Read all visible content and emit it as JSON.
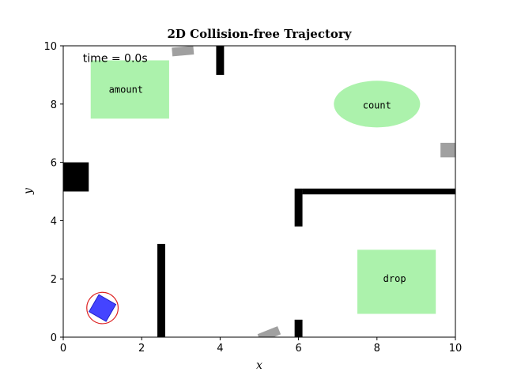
{
  "chart_data": {
    "type": "scatter",
    "title": "2D Collision-free Trajectory",
    "xlabel": "x",
    "ylabel": "y",
    "xlim": [
      0,
      10
    ],
    "ylim": [
      0,
      10
    ],
    "xticks": [
      0,
      2,
      4,
      6,
      8,
      10
    ],
    "yticks": [
      0,
      2,
      4,
      6,
      8,
      10
    ],
    "grid": false,
    "time_text": "time = 0.0s",
    "colors": {
      "obstacle": "#000000",
      "zone_fill": "#90ee90",
      "moving_obstacle": "#a0a0a0",
      "robot_fill": "#4444ff",
      "robot_outline": "#2222cc",
      "safety_circle": "#dd2222"
    },
    "zones": [
      {
        "label": "amount",
        "shape": "rect",
        "x0": 0.7,
        "x1": 2.7,
        "y0": 7.5,
        "y1": 9.5,
        "label_at": [
          1.6,
          8.5
        ]
      },
      {
        "label": "count",
        "shape": "ellipse",
        "cx": 8.0,
        "cy": 8.0,
        "rx": 1.1,
        "ry": 0.8,
        "label_at": [
          8.0,
          7.95
        ]
      },
      {
        "label": "drop",
        "shape": "rect",
        "x0": 7.5,
        "x1": 9.5,
        "y0": 0.8,
        "y1": 3.0,
        "label_at": [
          8.45,
          2.0
        ]
      }
    ],
    "static_obstacles": [
      {
        "x0": 0.0,
        "x1": 0.65,
        "y0": 5.0,
        "y1": 6.0
      },
      {
        "x0": 3.9,
        "x1": 4.1,
        "y0": 9.0,
        "y1": 10.0
      },
      {
        "x0": 5.9,
        "x1": 6.1,
        "y0": 3.8,
        "y1": 5.1
      },
      {
        "x0": 6.1,
        "x1": 10.0,
        "y0": 4.9,
        "y1": 5.1
      },
      {
        "x0": 2.4,
        "x1": 2.6,
        "y0": 0.0,
        "y1": 3.2
      },
      {
        "x0": 5.9,
        "x1": 6.1,
        "y0": 0.0,
        "y1": 0.6
      }
    ],
    "moving_obstacles": [
      {
        "cx": 3.05,
        "cy": 9.82,
        "w": 0.55,
        "h": 0.3,
        "angle": -5
      },
      {
        "cx": 9.82,
        "cy": 6.42,
        "w": 0.4,
        "h": 0.5,
        "angle": 0
      },
      {
        "cx": 5.25,
        "cy": 0.1,
        "w": 0.55,
        "h": 0.3,
        "angle": -22
      }
    ],
    "robot": {
      "x": 1.0,
      "y": 1.0,
      "size": 0.5,
      "angle": 30,
      "safety_radius": 0.4
    }
  }
}
